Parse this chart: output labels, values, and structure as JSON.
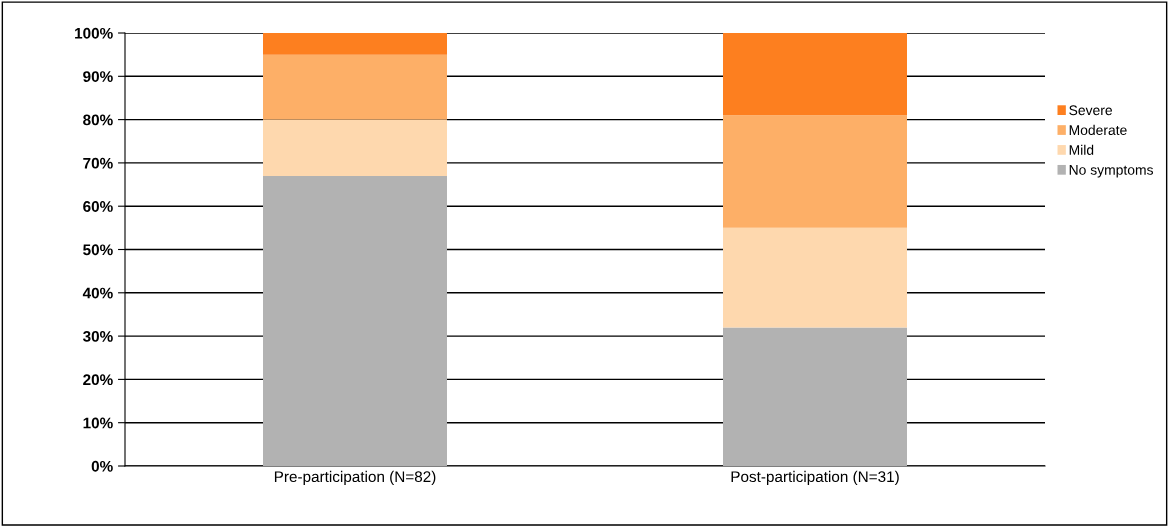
{
  "chart_data": {
    "type": "bar",
    "stacked": true,
    "categories": [
      "Pre-participation (N=82)",
      "Post-participation (N=31)"
    ],
    "series": [
      {
        "name": "No symptoms",
        "color": "#b2b2b2",
        "values": [
          67,
          32
        ]
      },
      {
        "name": "Mild",
        "color": "#fed8ae",
        "values": [
          13,
          23
        ]
      },
      {
        "name": "Moderate",
        "color": "#fdaf67",
        "values": [
          15,
          26
        ]
      },
      {
        "name": "Severe",
        "color": "#fd7f1f",
        "values": [
          5,
          19
        ]
      }
    ],
    "ylim": [
      0,
      100
    ],
    "yticks": [
      {
        "value": 0,
        "label": "0%"
      },
      {
        "value": 10,
        "label": "10%"
      },
      {
        "value": 20,
        "label": "20%"
      },
      {
        "value": 30,
        "label": "30%"
      },
      {
        "value": 40,
        "label": "40%"
      },
      {
        "value": 50,
        "label": "50%"
      },
      {
        "value": 60,
        "label": "60%"
      },
      {
        "value": 70,
        "label": "70%"
      },
      {
        "value": 80,
        "label": "80%"
      },
      {
        "value": 90,
        "label": "90%"
      },
      {
        "value": 100,
        "label": "100%"
      }
    ],
    "grid": "y",
    "legend": "right"
  }
}
